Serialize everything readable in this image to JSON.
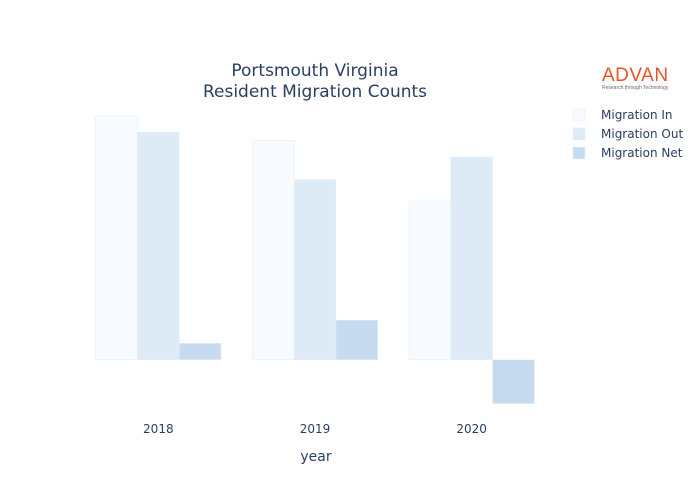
{
  "chart_data": {
    "type": "bar",
    "title_lines": [
      "Portsmouth Virginia",
      "Resident Migration Counts"
    ],
    "xlabel": "year",
    "ylabel": "",
    "categories": [
      "2018",
      "2019",
      "2020"
    ],
    "series": [
      {
        "name": "Migration In",
        "values": [
          5500,
          4950,
          3580
        ],
        "color": "#f7fbff"
      },
      {
        "name": "Migration Out",
        "values": [
          5130,
          4060,
          4570
        ],
        "color": "#deebf7"
      },
      {
        "name": "Migration Net",
        "values": [
          370,
          890,
          -990
        ],
        "color": "#c6dbef"
      }
    ],
    "ylim": [
      -1000,
      5500
    ],
    "grid": false,
    "legend_position": "top-right"
  },
  "brand": {
    "name": "ADVAN",
    "tagline": "Research through Technology"
  }
}
